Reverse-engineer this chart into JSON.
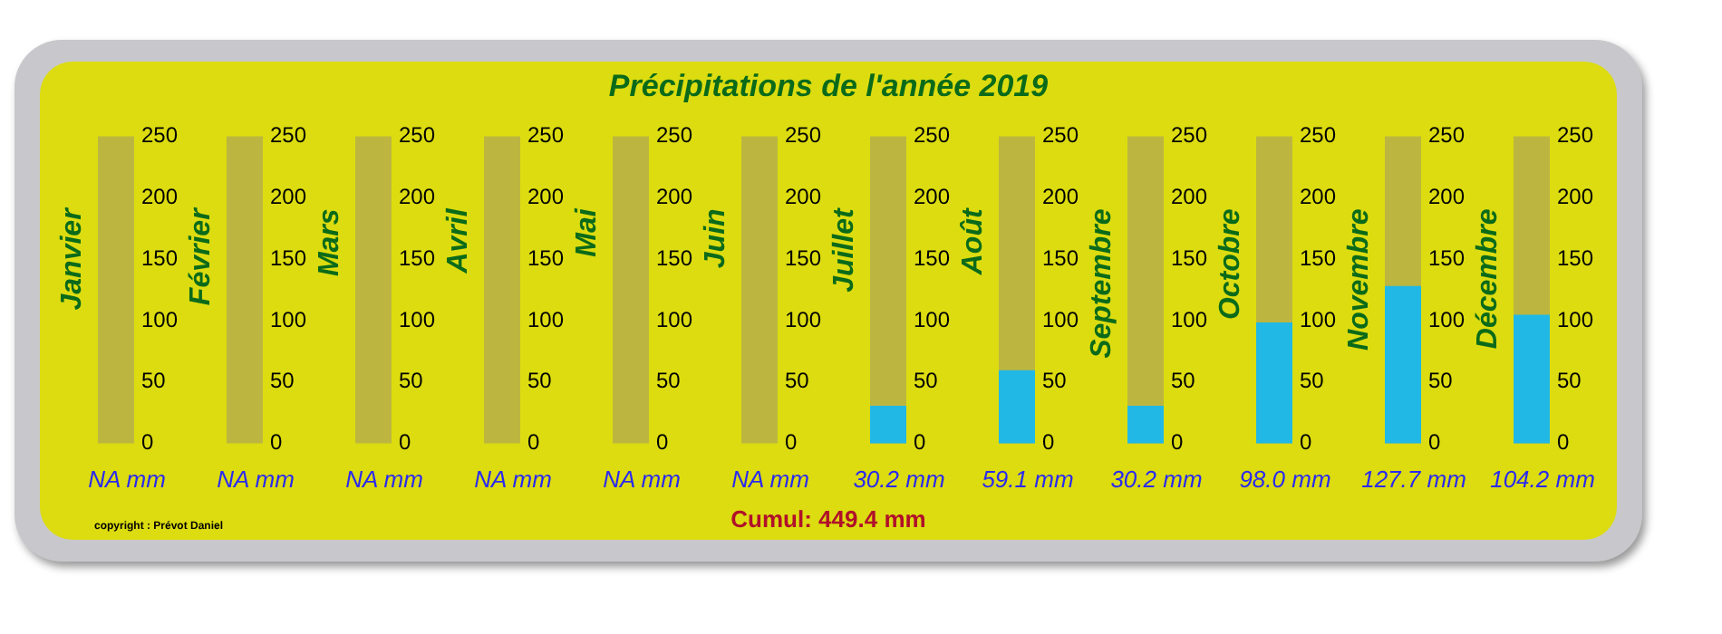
{
  "chart_data": [
    {
      "type": "bar",
      "annotations": [
        "Cumul: 449.4 mm",
        "copyright : Prévot Daniel"
      ],
      "categories": [
        "Janvier"
      ],
      "values": [
        null
      ],
      "value_labels": [
        "NA mm"
      ],
      "color": "#22b8e6",
      "ylim": [
        0,
        250
      ],
      "yticks": [
        0,
        50,
        100,
        150,
        200,
        250
      ],
      "bands": [
        {
          "axis": "y",
          "from": 0,
          "to": 250,
          "color": "#bcb640"
        }
      ]
    },
    {
      "type": "bar",
      "categories": [
        "Février"
      ],
      "values": [
        null
      ],
      "value_labels": [
        "NA mm"
      ],
      "color": "#22b8e6",
      "ylim": [
        0,
        250
      ],
      "yticks": [
        0,
        50,
        100,
        150,
        200,
        250
      ],
      "bands": [
        {
          "axis": "y",
          "from": 0,
          "to": 250,
          "color": "#bcb640"
        }
      ]
    },
    {
      "type": "bar",
      "categories": [
        "Mars"
      ],
      "values": [
        null
      ],
      "value_labels": [
        "NA mm"
      ],
      "color": "#22b8e6",
      "ylim": [
        0,
        250
      ],
      "yticks": [
        0,
        50,
        100,
        150,
        200,
        250
      ],
      "bands": [
        {
          "axis": "y",
          "from": 0,
          "to": 250,
          "color": "#bcb640"
        }
      ]
    },
    {
      "type": "bar",
      "categories": [
        "Avril"
      ],
      "values": [
        null
      ],
      "value_labels": [
        "NA mm"
      ],
      "color": "#22b8e6",
      "ylim": [
        0,
        250
      ],
      "yticks": [
        0,
        50,
        100,
        150,
        200,
        250
      ],
      "bands": [
        {
          "axis": "y",
          "from": 0,
          "to": 250,
          "color": "#bcb640"
        }
      ]
    },
    {
      "type": "bar",
      "categories": [
        "Mai"
      ],
      "values": [
        null
      ],
      "value_labels": [
        "NA mm"
      ],
      "color": "#22b8e6",
      "ylim": [
        0,
        250
      ],
      "yticks": [
        0,
        50,
        100,
        150,
        200,
        250
      ],
      "bands": [
        {
          "axis": "y",
          "from": 0,
          "to": 250,
          "color": "#bcb640"
        }
      ]
    },
    {
      "type": "bar",
      "title": "Précipitations de l'année 2019",
      "categories": [
        "Juin"
      ],
      "values": [
        null
      ],
      "value_labels": [
        "NA mm"
      ],
      "color": "#22b8e6",
      "ylim": [
        0,
        250
      ],
      "yticks": [
        0,
        50,
        100,
        150,
        200,
        250
      ],
      "bands": [
        {
          "axis": "y",
          "from": 0,
          "to": 250,
          "color": "#bcb640"
        }
      ]
    },
    {
      "type": "bar",
      "categories": [
        "Juillet"
      ],
      "values": [
        30.2
      ],
      "value_labels": [
        "30.2 mm"
      ],
      "color": "#22b8e6",
      "ylim": [
        0,
        250
      ],
      "yticks": [
        0,
        50,
        100,
        150,
        200,
        250
      ],
      "bands": [
        {
          "axis": "y",
          "from": 0,
          "to": 250,
          "color": "#bcb640"
        }
      ]
    },
    {
      "type": "bar",
      "categories": [
        "Août"
      ],
      "values": [
        59.1
      ],
      "value_labels": [
        "59.1 mm"
      ],
      "color": "#22b8e6",
      "ylim": [
        0,
        250
      ],
      "yticks": [
        0,
        50,
        100,
        150,
        200,
        250
      ],
      "bands": [
        {
          "axis": "y",
          "from": 0,
          "to": 250,
          "color": "#bcb640"
        }
      ]
    },
    {
      "type": "bar",
      "categories": [
        "Septembre"
      ],
      "values": [
        30.2
      ],
      "value_labels": [
        "30.2 mm"
      ],
      "color": "#22b8e6",
      "ylim": [
        0,
        250
      ],
      "yticks": [
        0,
        50,
        100,
        150,
        200,
        250
      ],
      "bands": [
        {
          "axis": "y",
          "from": 0,
          "to": 250,
          "color": "#bcb640"
        }
      ]
    },
    {
      "type": "bar",
      "categories": [
        "Octobre"
      ],
      "values": [
        98.0
      ],
      "value_labels": [
        "98.0 mm"
      ],
      "color": "#22b8e6",
      "ylim": [
        0,
        250
      ],
      "yticks": [
        0,
        50,
        100,
        150,
        200,
        250
      ],
      "bands": [
        {
          "axis": "y",
          "from": 0,
          "to": 250,
          "color": "#bcb640"
        }
      ]
    },
    {
      "type": "bar",
      "categories": [
        "Novembre"
      ],
      "values": [
        127.7
      ],
      "value_labels": [
        "127.7 mm"
      ],
      "color": "#22b8e6",
      "ylim": [
        0,
        250
      ],
      "yticks": [
        0,
        50,
        100,
        150,
        200,
        250
      ],
      "bands": [
        {
          "axis": "y",
          "from": 0,
          "to": 250,
          "color": "#bcb640"
        }
      ]
    },
    {
      "type": "bar",
      "categories": [
        "Décembre"
      ],
      "values": [
        104.2
      ],
      "value_labels": [
        "104.2 mm"
      ],
      "color": "#22b8e6",
      "ylim": [
        0,
        250
      ],
      "yticks": [
        0,
        50,
        100,
        150,
        200,
        250
      ],
      "bands": [
        {
          "axis": "y",
          "from": 0,
          "to": 250,
          "color": "#bcb640"
        }
      ]
    }
  ]
}
